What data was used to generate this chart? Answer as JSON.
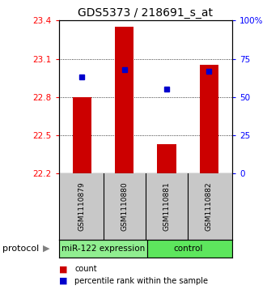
{
  "title": "GDS5373 / 218691_s_at",
  "samples": [
    "GSM1110879",
    "GSM1110880",
    "GSM1110881",
    "GSM1110882"
  ],
  "bar_values": [
    22.8,
    23.35,
    22.43,
    23.05
  ],
  "percentile_values": [
    63,
    68,
    55,
    67
  ],
  "y_min": 22.2,
  "y_max": 23.4,
  "y_ticks": [
    22.2,
    22.5,
    22.8,
    23.1,
    23.4
  ],
  "right_y_ticks": [
    0,
    25,
    50,
    75,
    100
  ],
  "bar_color": "#cc0000",
  "marker_color": "#0000cc",
  "groups": [
    {
      "label": "miR-122 expression",
      "color": "#90ee90"
    },
    {
      "label": "control",
      "color": "#5de65d"
    }
  ],
  "protocol_label": "protocol",
  "legend_count_label": "count",
  "legend_percentile_label": "percentile rank within the sample",
  "title_fontsize": 10,
  "tick_fontsize": 7.5,
  "sample_label_fontsize": 6.5,
  "group_label_fontsize": 7.5
}
